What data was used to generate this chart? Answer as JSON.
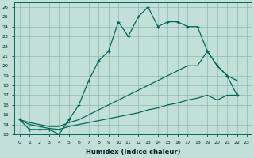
{
  "title": "",
  "xlabel": "Humidex (Indice chaleur)",
  "ylabel": "",
  "bg_color": "#c2e0d8",
  "grid_color": "#90b8b0",
  "line_color": "#006858",
  "xlim": [
    -0.5,
    23.5
  ],
  "ylim": [
    13,
    26.5
  ],
  "xticks": [
    0,
    1,
    2,
    3,
    4,
    5,
    6,
    7,
    8,
    9,
    10,
    11,
    12,
    13,
    14,
    15,
    16,
    17,
    18,
    19,
    20,
    21,
    22,
    23
  ],
  "yticks": [
    13,
    14,
    15,
    16,
    17,
    18,
    19,
    20,
    21,
    22,
    23,
    24,
    25,
    26
  ],
  "line1_x": [
    0,
    1,
    2,
    3,
    4,
    5,
    6,
    7,
    8,
    9,
    10,
    11,
    12,
    13,
    14,
    15,
    16,
    17,
    18,
    19,
    20,
    21,
    22
  ],
  "line1_y": [
    14.5,
    13.5,
    13.5,
    13.5,
    13.0,
    14.5,
    16.0,
    18.5,
    20.5,
    21.5,
    24.5,
    23.0,
    25.0,
    26.0,
    24.0,
    24.5,
    24.5,
    24.0,
    24.0,
    21.5,
    20.0,
    19.0,
    17.0
  ],
  "line2_x": [
    0,
    1,
    2,
    3,
    4,
    5,
    6,
    7,
    8,
    9,
    10,
    11,
    12,
    13,
    14,
    15,
    16,
    17,
    18,
    19,
    20,
    21,
    22
  ],
  "line2_y": [
    14.5,
    14.2,
    14.0,
    13.8,
    13.8,
    14.2,
    14.5,
    15.0,
    15.5,
    16.0,
    16.5,
    17.0,
    17.5,
    18.0,
    18.5,
    19.0,
    19.5,
    20.0,
    20.0,
    21.5,
    20.0,
    19.0,
    18.5
  ],
  "line3_x": [
    0,
    1,
    2,
    3,
    4,
    5,
    6,
    7,
    8,
    9,
    10,
    11,
    12,
    13,
    14,
    15,
    16,
    17,
    18,
    19,
    20,
    21,
    22
  ],
  "line3_y": [
    14.5,
    14.0,
    13.8,
    13.6,
    13.5,
    13.8,
    14.0,
    14.2,
    14.4,
    14.6,
    14.8,
    15.0,
    15.2,
    15.5,
    15.7,
    16.0,
    16.2,
    16.5,
    16.7,
    17.0,
    16.5,
    17.0,
    17.0
  ]
}
